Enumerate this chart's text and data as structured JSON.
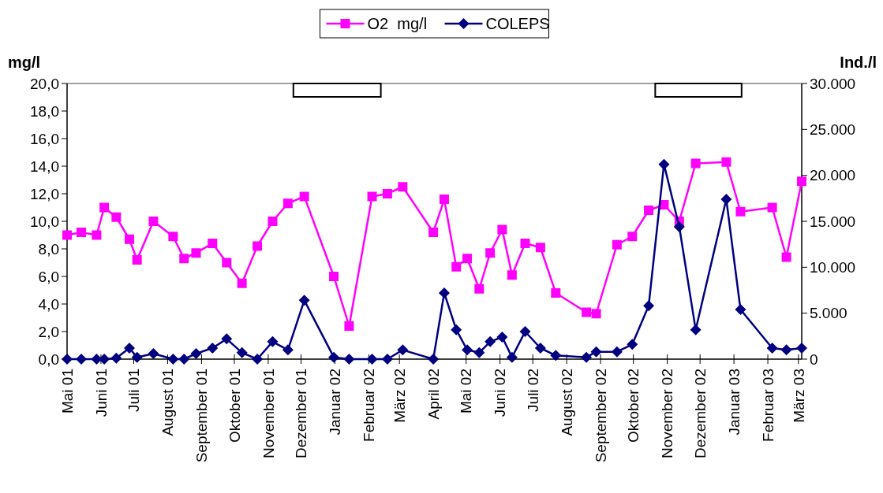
{
  "chart_data": {
    "type": "line",
    "x": [
      "2001-05-01",
      "2001-05-14",
      "2001-05-28",
      "2001-06-04",
      "2001-06-15",
      "2001-06-27",
      "2001-07-04",
      "2001-07-19",
      "2001-08-06",
      "2001-08-16",
      "2001-08-27",
      "2001-09-11",
      "2001-09-24",
      "2001-10-08",
      "2001-10-22",
      "2001-11-05",
      "2001-11-19",
      "2001-12-04",
      "2001-12-31",
      "2002-01-14",
      "2002-02-04",
      "2002-02-18",
      "2002-03-04",
      "2002-04-01",
      "2002-04-11",
      "2002-04-22",
      "2002-05-02",
      "2002-05-13",
      "2002-05-23",
      "2002-06-03",
      "2002-06-12",
      "2002-06-24",
      "2002-07-08",
      "2002-07-22",
      "2002-08-19",
      "2002-08-28",
      "2002-09-16",
      "2002-09-30",
      "2002-10-15",
      "2002-10-29",
      "2002-11-12",
      "2002-11-27",
      "2002-12-25",
      "2003-01-07",
      "2003-02-05",
      "2003-02-18",
      "2003-03-04"
    ],
    "series": [
      {
        "name": "O2  mg/l",
        "color": "#ff00ff",
        "marker": "square",
        "values": [
          9.0,
          9.2,
          9.0,
          11.0,
          10.3,
          8.7,
          7.2,
          10.0,
          8.9,
          7.3,
          7.7,
          8.4,
          7.0,
          5.5,
          8.2,
          10.0,
          11.3,
          11.8,
          6.0,
          2.4,
          11.8,
          12.0,
          12.5,
          9.2,
          11.6,
          6.7,
          7.3,
          5.1,
          7.7,
          9.4,
          6.1,
          8.4,
          8.1,
          4.8,
          3.4,
          3.3,
          8.3,
          8.9,
          10.8,
          11.2,
          10.0,
          14.2,
          14.3,
          10.7,
          11.0,
          7.4,
          12.9
        ]
      },
      {
        "name": "COLEPS",
        "color": "#000080",
        "marker": "diamond",
        "axis": "y2",
        "values": [
          0,
          0,
          0,
          0,
          100,
          1200,
          200,
          600,
          0,
          0,
          600,
          1200,
          2200,
          700,
          0,
          1900,
          1000,
          6400,
          200,
          0,
          0,
          0,
          1000,
          0,
          7200,
          3200,
          1000,
          700,
          1900,
          2400,
          200,
          3000,
          1200,
          400,
          200,
          800,
          800,
          1600,
          5800,
          21200,
          14400,
          3200,
          17400,
          5400,
          1200,
          1000,
          1200
        ]
      }
    ],
    "xlim": [
      "2001-05-01",
      "2003-03-04"
    ],
    "xticks": [
      {
        "value": "2001-05-01",
        "label": "Mai 01"
      },
      {
        "value": "2001-06-01",
        "label": "Juni 01"
      },
      {
        "value": "2001-07-01",
        "label": "Juli 01"
      },
      {
        "value": "2001-08-01",
        "label": "August 01"
      },
      {
        "value": "2001-09-01",
        "label": "September 01"
      },
      {
        "value": "2001-10-01",
        "label": "Oktober 01"
      },
      {
        "value": "2001-11-01",
        "label": "November 01"
      },
      {
        "value": "2001-12-01",
        "label": "Dezember 01"
      },
      {
        "value": "2002-01-01",
        "label": "Januar 02"
      },
      {
        "value": "2002-02-01",
        "label": "Februar 02"
      },
      {
        "value": "2002-03-01",
        "label": "März 02"
      },
      {
        "value": "2002-04-01",
        "label": "April 02"
      },
      {
        "value": "2002-05-01",
        "label": "Mai 02"
      },
      {
        "value": "2002-06-01",
        "label": "Juni 02"
      },
      {
        "value": "2002-07-01",
        "label": "Juli 02"
      },
      {
        "value": "2002-08-01",
        "label": "August 02"
      },
      {
        "value": "2002-09-01",
        "label": "September 02"
      },
      {
        "value": "2002-10-01",
        "label": "Oktober 02"
      },
      {
        "value": "2002-11-01",
        "label": "November 02"
      },
      {
        "value": "2002-12-01",
        "label": "Dezember 02"
      },
      {
        "value": "2003-01-01",
        "label": "Januar 03"
      },
      {
        "value": "2003-02-01",
        "label": "Februar 03"
      },
      {
        "value": "2003-03-01",
        "label": "März 03"
      }
    ],
    "ylim": [
      0,
      20
    ],
    "yticks": [
      {
        "value": 0,
        "label": "0,0"
      },
      {
        "value": 2,
        "label": "2,0"
      },
      {
        "value": 4,
        "label": "4,0"
      },
      {
        "value": 6,
        "label": "6,0"
      },
      {
        "value": 8,
        "label": "8,0"
      },
      {
        "value": 10,
        "label": "10,0"
      },
      {
        "value": 12,
        "label": "12,0"
      },
      {
        "value": 14,
        "label": "14,0"
      },
      {
        "value": 16,
        "label": "16,0"
      },
      {
        "value": 18,
        "label": "18,0"
      },
      {
        "value": 20,
        "label": "20,0"
      }
    ],
    "y2lim": [
      0,
      30000
    ],
    "y2ticks": [
      {
        "value": 0,
        "label": "0"
      },
      {
        "value": 5000,
        "label": "5.000"
      },
      {
        "value": 10000,
        "label": "10.000"
      },
      {
        "value": 15000,
        "label": "15.000"
      },
      {
        "value": 20000,
        "label": "20.000"
      },
      {
        "value": 25000,
        "label": "25.000"
      },
      {
        "value": 30000,
        "label": "30.000"
      }
    ],
    "ylabel": "mg/l",
    "y2label": "Ind./l",
    "bands": [
      {
        "axis": "x",
        "from": "2001-11-24",
        "to": "2002-02-12",
        "color": "#000000"
      },
      {
        "axis": "x",
        "from": "2002-10-21",
        "to": "2003-01-08",
        "color": "#000000"
      }
    ],
    "legend": "top",
    "grid": false,
    "line_style": "solid"
  }
}
